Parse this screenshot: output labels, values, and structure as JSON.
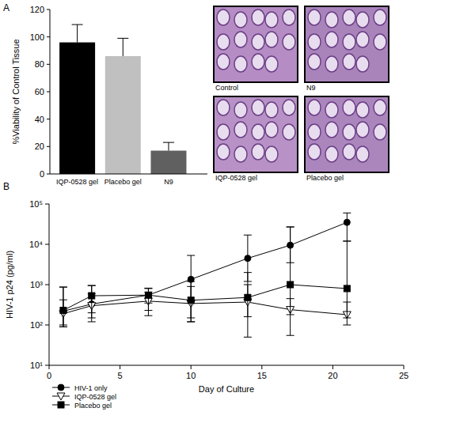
{
  "panel_labels": [
    "A",
    "B"
  ],
  "micrographs": [
    "Control",
    "N9",
    "IQP-0528 gel",
    "Placebo gel"
  ],
  "chart_data": [
    {
      "type": "bar",
      "y_label": "%Viability of Control Tissue",
      "categories": [
        "IQP-0528 gel",
        "Placebo gel",
        "N9"
      ],
      "values": [
        96,
        86,
        17
      ],
      "errors": [
        13,
        13,
        6
      ],
      "colors": [
        "#000000",
        "#c0c0c0",
        "#606060"
      ],
      "ylim": [
        0,
        120
      ],
      "yticks": [
        0,
        20,
        40,
        60,
        80,
        100,
        120
      ],
      "grid": false
    },
    {
      "type": "line",
      "x_label": "Day of Culture",
      "y_label": "HIV-1 p24 (pg/ml)",
      "log": "y",
      "legend": "lower left",
      "grid": false,
      "x": [
        1,
        3,
        7,
        10,
        14,
        17,
        21
      ],
      "series": [
        {
          "name": "HIV-1 only",
          "color": "#000000",
          "marker": "circle",
          "values": [
            220,
            330,
            550,
            1350,
            4500,
            9500,
            35000
          ],
          "lower": [
            90,
            120,
            350,
            120,
            1200,
            3500,
            12000
          ],
          "upper": [
            870,
            950,
            820,
            5300,
            17000,
            27000,
            60000
          ]
        },
        {
          "name": "IQP-0528 gel",
          "color": "#000000",
          "marker": "open_triangle_down",
          "values": [
            190,
            300,
            390,
            340,
            370,
            240,
            180
          ],
          "lower": [
            90,
            150,
            230,
            120,
            50,
            55,
            100
          ],
          "upper": [
            420,
            600,
            650,
            900,
            1000,
            450,
            370
          ]
        },
        {
          "name": "Placebo gel",
          "color": "#000000",
          "marker": "square",
          "values": [
            230,
            530,
            550,
            410,
            480,
            1000,
            800
          ],
          "lower": [
            100,
            200,
            170,
            150,
            160,
            180,
            150
          ],
          "upper": [
            870,
            950,
            800,
            1200,
            2000,
            27000,
            12000
          ]
        }
      ],
      "xlim": [
        0,
        25
      ],
      "xticks": [
        0,
        5,
        10,
        15,
        20,
        25
      ],
      "ylim": [
        10,
        100000
      ],
      "yticks": [
        {
          "value": 10,
          "label": "10¹"
        },
        {
          "value": 100,
          "label": "10²"
        },
        {
          "value": 1000,
          "label": "10³"
        },
        {
          "value": 10000,
          "label": "10⁴"
        },
        {
          "value": 100000,
          "label": "10⁵"
        }
      ]
    }
  ]
}
